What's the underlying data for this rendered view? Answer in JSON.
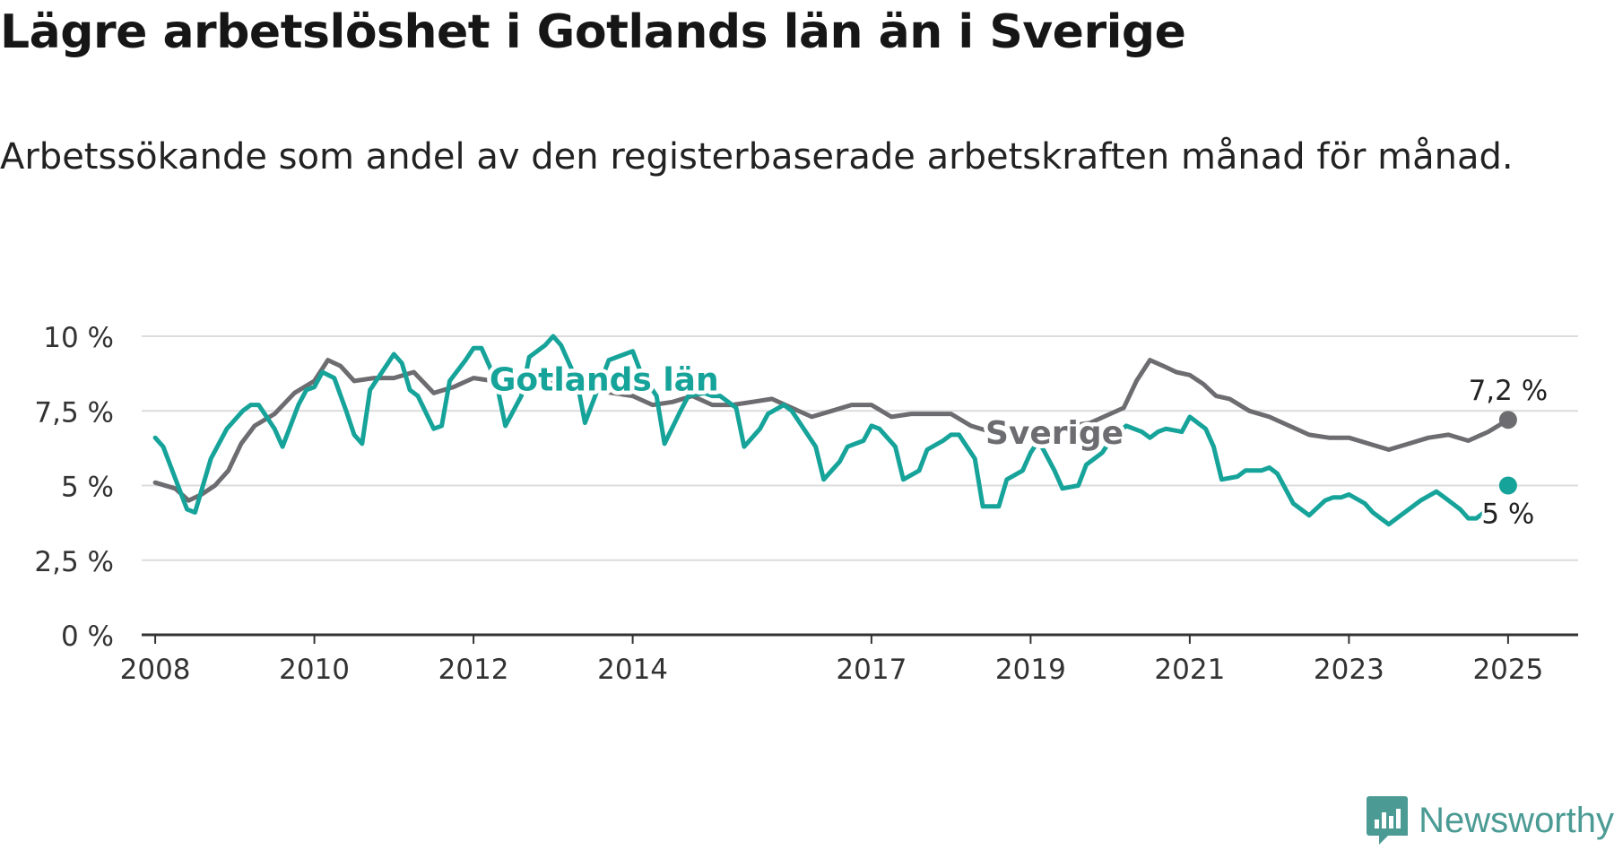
{
  "title": "Lägre arbetslöshet i Gotlands län än i Sverige",
  "subtitle": "Arbetssökande som andel av den registerbaserade arbetskraften månad för månad.",
  "brand": {
    "name": "Newsworthy",
    "icon": "newsworthy-logo-icon",
    "color": "#4b9b94"
  },
  "chart_data": {
    "type": "line",
    "title": "",
    "xlabel": "",
    "ylabel": "",
    "x_ticks": [
      2008,
      2010,
      2012,
      2014,
      2017,
      2019,
      2021,
      2023,
      2025
    ],
    "x_tick_labels": [
      "2008",
      "2010",
      "2012",
      "2014",
      "2017",
      "2019",
      "2021",
      "2023",
      "2025"
    ],
    "x_range": [
      2007.83,
      2025.88
    ],
    "y_ticks": [
      0,
      2.5,
      5,
      7.5,
      10
    ],
    "y_tick_labels": [
      "0 %",
      "2,5 %",
      "5 %",
      "7,5 %",
      "10 %"
    ],
    "ylim": [
      0,
      10
    ],
    "grid": "horizontal",
    "legend": "inline labels on lines",
    "series": [
      {
        "name": "Sverige",
        "color": "#6d6c70",
        "end_label": "7,2 %",
        "x": [
          2008.0,
          2008.25,
          2008.42,
          2008.58,
          2008.75,
          2008.92,
          2009.08,
          2009.25,
          2009.5,
          2009.75,
          2010.0,
          2010.17,
          2010.33,
          2010.5,
          2010.75,
          2011.0,
          2011.25,
          2011.5,
          2011.75,
          2012.0,
          2012.25,
          2012.5,
          2012.75,
          2013.0,
          2013.25,
          2013.5,
          2013.75,
          2014.0,
          2014.25,
          2014.5,
          2014.75,
          2015.0,
          2015.25,
          2015.5,
          2015.75,
          2016.0,
          2016.25,
          2016.5,
          2016.75,
          2017.0,
          2017.25,
          2017.5,
          2017.75,
          2018.0,
          2018.25,
          2018.5,
          2018.75,
          2019.0,
          2019.25,
          2019.5,
          2019.75,
          2020.0,
          2020.17,
          2020.33,
          2020.5,
          2020.67,
          2020.83,
          2021.0,
          2021.17,
          2021.33,
          2021.5,
          2021.75,
          2022.0,
          2022.25,
          2022.5,
          2022.75,
          2023.0,
          2023.25,
          2023.5,
          2023.75,
          2024.0,
          2024.25,
          2024.5,
          2024.75,
          2025.0
        ],
        "y": [
          5.1,
          4.9,
          4.5,
          4.7,
          5.0,
          5.5,
          6.4,
          7.0,
          7.4,
          8.1,
          8.5,
          9.2,
          9.0,
          8.5,
          8.6,
          8.6,
          8.8,
          8.1,
          8.3,
          8.6,
          8.5,
          8.3,
          8.4,
          8.5,
          8.4,
          8.2,
          8.1,
          8.0,
          7.7,
          7.8,
          8.0,
          7.7,
          7.7,
          7.8,
          7.9,
          7.6,
          7.3,
          7.5,
          7.7,
          7.7,
          7.3,
          7.4,
          7.4,
          7.4,
          7.0,
          6.8,
          6.7,
          6.6,
          6.7,
          7.0,
          7.1,
          7.4,
          7.6,
          8.5,
          9.2,
          9.0,
          8.8,
          8.7,
          8.4,
          8.0,
          7.9,
          7.5,
          7.3,
          7.0,
          6.7,
          6.6,
          6.6,
          6.4,
          6.2,
          6.4,
          6.6,
          6.7,
          6.5,
          6.8,
          7.2
        ]
      },
      {
        "name": "Gotlands län",
        "color": "#16a39a",
        "end_label": "5 %",
        "x": [
          2008.0,
          2008.1,
          2008.4,
          2008.5,
          2008.7,
          2008.9,
          2009.1,
          2009.2,
          2009.3,
          2009.5,
          2009.6,
          2009.8,
          2009.9,
          2010.0,
          2010.1,
          2010.25,
          2010.4,
          2010.5,
          2010.6,
          2010.7,
          2010.9,
          2011.0,
          2011.1,
          2011.2,
          2011.3,
          2011.5,
          2011.6,
          2011.7,
          2011.9,
          2012.0,
          2012.1,
          2012.2,
          2012.3,
          2012.4,
          2012.6,
          2012.7,
          2012.9,
          2013.0,
          2013.1,
          2013.3,
          2013.4,
          2013.6,
          2013.7,
          2013.9,
          2014.0,
          2014.1,
          2014.3,
          2014.4,
          2014.6,
          2014.7,
          2014.9,
          2015.0,
          2015.1,
          2015.3,
          2015.4,
          2015.6,
          2015.7,
          2015.9,
          2016.0,
          2016.1,
          2016.3,
          2016.4,
          2016.6,
          2016.7,
          2016.9,
          2017.0,
          2017.1,
          2017.3,
          2017.4,
          2017.6,
          2017.7,
          2017.9,
          2018.0,
          2018.1,
          2018.3,
          2018.4,
          2018.6,
          2018.7,
          2018.9,
          2019.0,
          2019.1,
          2019.3,
          2019.4,
          2019.6,
          2019.7,
          2019.9,
          2020.0,
          2020.2,
          2020.4,
          2020.5,
          2020.6,
          2020.7,
          2020.9,
          2021.0,
          2021.2,
          2021.3,
          2021.4,
          2021.6,
          2021.7,
          2021.8,
          2021.9,
          2022.0,
          2022.1,
          2022.2,
          2022.3,
          2022.5,
          2022.7,
          2022.8,
          2022.9,
          2023.0,
          2023.2,
          2023.3,
          2023.5,
          2023.7,
          2023.9,
          2024.1,
          2024.2,
          2024.4,
          2024.5,
          2024.6,
          2024.75
        ],
        "y": [
          6.6,
          6.3,
          4.2,
          4.1,
          5.9,
          6.9,
          7.5,
          7.7,
          7.7,
          6.9,
          6.3,
          7.7,
          8.2,
          8.3,
          8.8,
          8.6,
          7.5,
          6.7,
          6.4,
          8.2,
          9.0,
          9.4,
          9.1,
          8.2,
          8.0,
          6.9,
          7.0,
          8.5,
          9.2,
          9.6,
          9.6,
          9.0,
          8.3,
          7.0,
          8.0,
          9.3,
          9.7,
          10.0,
          9.7,
          8.5,
          7.1,
          8.5,
          9.2,
          9.4,
          9.5,
          8.8,
          8.0,
          6.4,
          7.5,
          8.0,
          8.1,
          8.0,
          8.0,
          7.6,
          6.3,
          6.9,
          7.4,
          7.7,
          7.5,
          7.1,
          6.3,
          5.2,
          5.8,
          6.3,
          6.5,
          7.0,
          6.9,
          6.3,
          5.2,
          5.5,
          6.2,
          6.5,
          6.7,
          6.7,
          5.9,
          4.3,
          4.3,
          5.2,
          5.5,
          6.1,
          6.5,
          5.5,
          4.9,
          5.0,
          5.7,
          6.1,
          6.5,
          7.0,
          6.8,
          6.6,
          6.8,
          6.9,
          6.8,
          7.3,
          6.9,
          6.3,
          5.2,
          5.3,
          5.5,
          5.5,
          5.5,
          5.6,
          5.4,
          4.9,
          4.4,
          4.0,
          4.5,
          4.6,
          4.6,
          4.7,
          4.4,
          4.1,
          3.7,
          4.1,
          4.5,
          4.8,
          4.6,
          4.2,
          3.9,
          3.9,
          4.2
        ]
      }
    ],
    "end_point": {
      "name": "Gotlands län",
      "x": 2025.0,
      "y": 5.0
    }
  }
}
